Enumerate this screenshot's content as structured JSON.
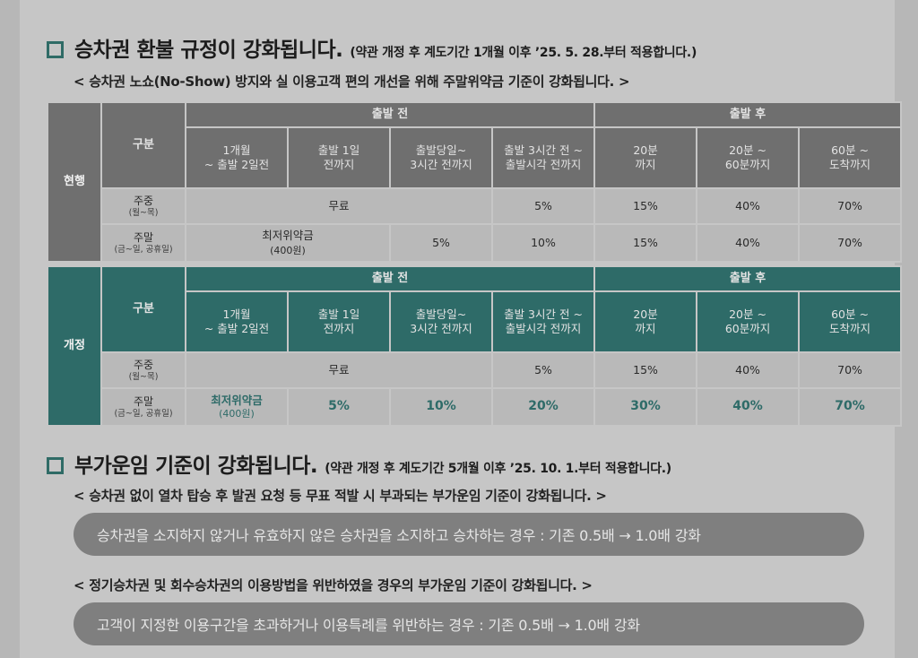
{
  "section1": {
    "title": "승차권 환불 규정이 강화됩니다.",
    "note": "(약관 개정 후 계도기간 1개월 이후 ’25. 5. 28.부터 적용합니다.)",
    "subtitle": "< 승차권 노쇼(No-Show) 방지와 실 이용고객 편의 개선을 위해 주말위약금 기준이 강화됩니다. >"
  },
  "table": {
    "gubun": "구분",
    "before_departure": "출발 전",
    "after_departure": "출발 후",
    "columns": [
      "1개월\n~ 출발 2일전",
      "출발 1일\n전까지",
      "출발당일~\n3시간 전까지",
      "출발 3시간 전 ~\n출발시각 전까지",
      "20분\n까지",
      "20분 ~\n60분까지",
      "60분 ~\n도착까지"
    ],
    "weekday_label": "주중",
    "weekday_sub": "(월~목)",
    "weekend_label": "주말",
    "weekend_sub": "(금~일, 공휴일)",
    "current": {
      "label": "현행",
      "weekday": {
        "free": "무료",
        "c4": "5%",
        "c5": "15%",
        "c6": "40%",
        "c7": "70%"
      },
      "weekend": {
        "min_fee": "최저위약금",
        "min_fee_amount": "(400원)",
        "c3": "5%",
        "c4": "10%",
        "c5": "15%",
        "c6": "40%",
        "c7": "70%"
      }
    },
    "revised": {
      "label": "개정",
      "weekday": {
        "free": "무료",
        "c4": "5%",
        "c5": "15%",
        "c6": "40%",
        "c7": "70%"
      },
      "weekend": {
        "min_fee": "최저위약금",
        "min_fee_amount": "(400원)",
        "c2": "5%",
        "c3": "10%",
        "c4": "20%",
        "c5": "30%",
        "c6": "40%",
        "c7": "70%"
      }
    }
  },
  "section2": {
    "title": "부가운임 기준이 강화됩니다.",
    "note": "(약관 개정 후 계도기간 5개월 이후 ’25. 10. 1.부터 적용합니다.)",
    "sub1": "< 승차권 없이 열차 탑승 후 발권 요청 등 무표 적발 시 부과되는 부가운임 기준이 강화됩니다. >",
    "pill1": "승차권을 소지하지 않거나 유효하지 않은 승차권을 소지하고 승차하는 경우 : 기존 0.5배 → 1.0배 강화",
    "sub2": "< 정기승차권 및 회수승차권의 이용방법을 위반하였을 경우의 부가운임 기준이 강화됩니다. >",
    "pill2": "고객이 지정한 이용구간을 초과하거나 이용특례를 위반하는 경우 : 기존 0.5배 → 1.0배 강화"
  },
  "colors": {
    "teal": "#2e6b68",
    "gray_header": "#6f6f6f",
    "cell": "#b9b9b9",
    "pill": "#7f7f7f"
  }
}
